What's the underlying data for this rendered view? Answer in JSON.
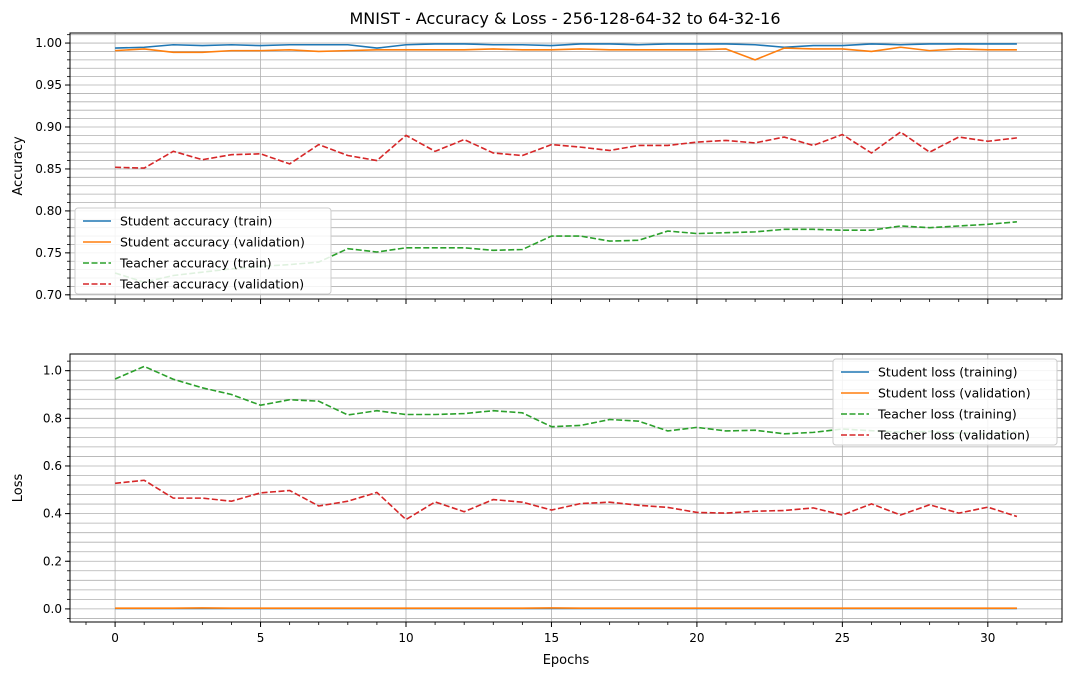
{
  "title": "MNIST - Accuracy & Loss - 256-128-64-32 to 64-32-16",
  "colors": {
    "student_train": "#1f77b4",
    "student_val": "#ff7f0e",
    "teacher_train": "#2ca02c",
    "teacher_val": "#d62728",
    "grid": "#b0b0b0"
  },
  "chart_data": [
    {
      "type": "line",
      "xlabel": "",
      "ylabel": "Accuracy",
      "xlim": [
        -1.55,
        32.55
      ],
      "ylim": [
        0.695,
        1.012
      ],
      "xticks": [
        0,
        5,
        10,
        15,
        20,
        25,
        30
      ],
      "yticks": [
        0.7,
        0.75,
        0.8,
        0.85,
        0.9,
        0.95,
        1.0
      ],
      "ytick_labels": [
        "0.70",
        "0.75",
        "0.80",
        "0.85",
        "0.90",
        "0.95",
        "1.00"
      ],
      "grid": true,
      "legend_position": "lower-left",
      "x": [
        0,
        1,
        2,
        3,
        4,
        5,
        6,
        7,
        8,
        9,
        10,
        11,
        12,
        13,
        14,
        15,
        16,
        17,
        18,
        19,
        20,
        21,
        22,
        23,
        24,
        25,
        26,
        27,
        28,
        29,
        30,
        31
      ],
      "series": [
        {
          "name": "Student accuracy (train)",
          "color_key": "student_train",
          "dashed": false,
          "values": [
            0.994,
            0.995,
            0.998,
            0.997,
            0.998,
            0.997,
            0.998,
            0.998,
            0.998,
            0.994,
            0.998,
            0.999,
            0.999,
            0.998,
            0.998,
            0.997,
            0.999,
            0.999,
            0.998,
            0.999,
            0.999,
            0.999,
            0.998,
            0.995,
            0.997,
            0.997,
            0.999,
            0.998,
            0.999,
            0.999,
            0.999,
            0.999
          ]
        },
        {
          "name": "Student accuracy (validation)",
          "color_key": "student_val",
          "dashed": false,
          "values": [
            0.991,
            0.993,
            0.989,
            0.989,
            0.991,
            0.991,
            0.992,
            0.99,
            0.991,
            0.992,
            0.992,
            0.992,
            0.992,
            0.993,
            0.992,
            0.992,
            0.993,
            0.992,
            0.992,
            0.992,
            0.992,
            0.993,
            0.98,
            0.994,
            0.993,
            0.993,
            0.99,
            0.995,
            0.991,
            0.993,
            0.992,
            0.992
          ]
        },
        {
          "name": "Teacher accuracy (train)",
          "color_key": "teacher_train",
          "dashed": true,
          "values": [
            0.726,
            0.715,
            0.723,
            0.727,
            0.731,
            0.734,
            0.736,
            0.739,
            0.755,
            0.751,
            0.756,
            0.756,
            0.756,
            0.753,
            0.754,
            0.77,
            0.77,
            0.764,
            0.765,
            0.776,
            0.773,
            0.774,
            0.775,
            0.778,
            0.778,
            0.777,
            0.777,
            0.782,
            0.78,
            0.782,
            0.784,
            0.787
          ]
        },
        {
          "name": "Teacher accuracy (validation)",
          "color_key": "teacher_val",
          "dashed": true,
          "values": [
            0.852,
            0.851,
            0.871,
            0.861,
            0.867,
            0.868,
            0.856,
            0.879,
            0.866,
            0.86,
            0.89,
            0.871,
            0.885,
            0.869,
            0.866,
            0.879,
            0.876,
            0.872,
            0.878,
            0.878,
            0.882,
            0.884,
            0.881,
            0.888,
            0.878,
            0.891,
            0.869,
            0.894,
            0.87,
            0.888,
            0.883,
            0.887
          ]
        }
      ]
    },
    {
      "type": "line",
      "xlabel": "Epochs",
      "ylabel": "Loss",
      "xlim": [
        -1.55,
        32.55
      ],
      "ylim": [
        -0.055,
        1.07
      ],
      "xticks": [
        0,
        5,
        10,
        15,
        20,
        25,
        30
      ],
      "yticks": [
        0.0,
        0.2,
        0.4,
        0.6,
        0.8,
        1.0
      ],
      "ytick_labels": [
        "0.0",
        "0.2",
        "0.4",
        "0.6",
        "0.8",
        "1.0"
      ],
      "grid": true,
      "legend_position": "upper-right",
      "x": [
        0,
        1,
        2,
        3,
        4,
        5,
        6,
        7,
        8,
        9,
        10,
        11,
        12,
        13,
        14,
        15,
        16,
        17,
        18,
        19,
        20,
        21,
        22,
        23,
        24,
        25,
        26,
        27,
        28,
        29,
        30,
        31
      ],
      "series": [
        {
          "name": "Student loss (training)",
          "color_key": "student_train",
          "dashed": false,
          "values": [
            0.002,
            0.002,
            0.002,
            0.002,
            0.002,
            0.002,
            0.002,
            0.002,
            0.002,
            0.002,
            0.002,
            0.002,
            0.002,
            0.002,
            0.002,
            0.002,
            0.002,
            0.002,
            0.002,
            0.002,
            0.002,
            0.002,
            0.002,
            0.002,
            0.002,
            0.002,
            0.002,
            0.002,
            0.002,
            0.002,
            0.002,
            0.002
          ]
        },
        {
          "name": "Student loss (validation)",
          "color_key": "student_val",
          "dashed": false,
          "values": [
            0.003,
            0.003,
            0.003,
            0.004,
            0.003,
            0.003,
            0.003,
            0.003,
            0.003,
            0.003,
            0.003,
            0.003,
            0.003,
            0.003,
            0.003,
            0.004,
            0.003,
            0.003,
            0.003,
            0.003,
            0.003,
            0.003,
            0.003,
            0.003,
            0.003,
            0.003,
            0.003,
            0.003,
            0.003,
            0.003,
            0.003,
            0.003
          ]
        },
        {
          "name": "Teacher loss (training)",
          "color_key": "teacher_train",
          "dashed": true,
          "values": [
            0.965,
            1.018,
            0.964,
            0.928,
            0.9,
            0.855,
            0.878,
            0.872,
            0.814,
            0.832,
            0.816,
            0.816,
            0.82,
            0.832,
            0.823,
            0.765,
            0.77,
            0.795,
            0.788,
            0.747,
            0.762,
            0.747,
            0.75,
            0.735,
            0.741,
            0.755,
            0.748,
            0.742,
            0.745,
            0.738,
            0.735,
            0.743
          ]
        },
        {
          "name": "Teacher loss (validation)",
          "color_key": "teacher_val",
          "dashed": true,
          "values": [
            0.527,
            0.54,
            0.465,
            0.465,
            0.452,
            0.487,
            0.497,
            0.432,
            0.452,
            0.489,
            0.375,
            0.449,
            0.408,
            0.459,
            0.448,
            0.415,
            0.442,
            0.448,
            0.435,
            0.426,
            0.405,
            0.402,
            0.41,
            0.413,
            0.424,
            0.394,
            0.441,
            0.394,
            0.437,
            0.402,
            0.427,
            0.388
          ]
        }
      ]
    }
  ]
}
